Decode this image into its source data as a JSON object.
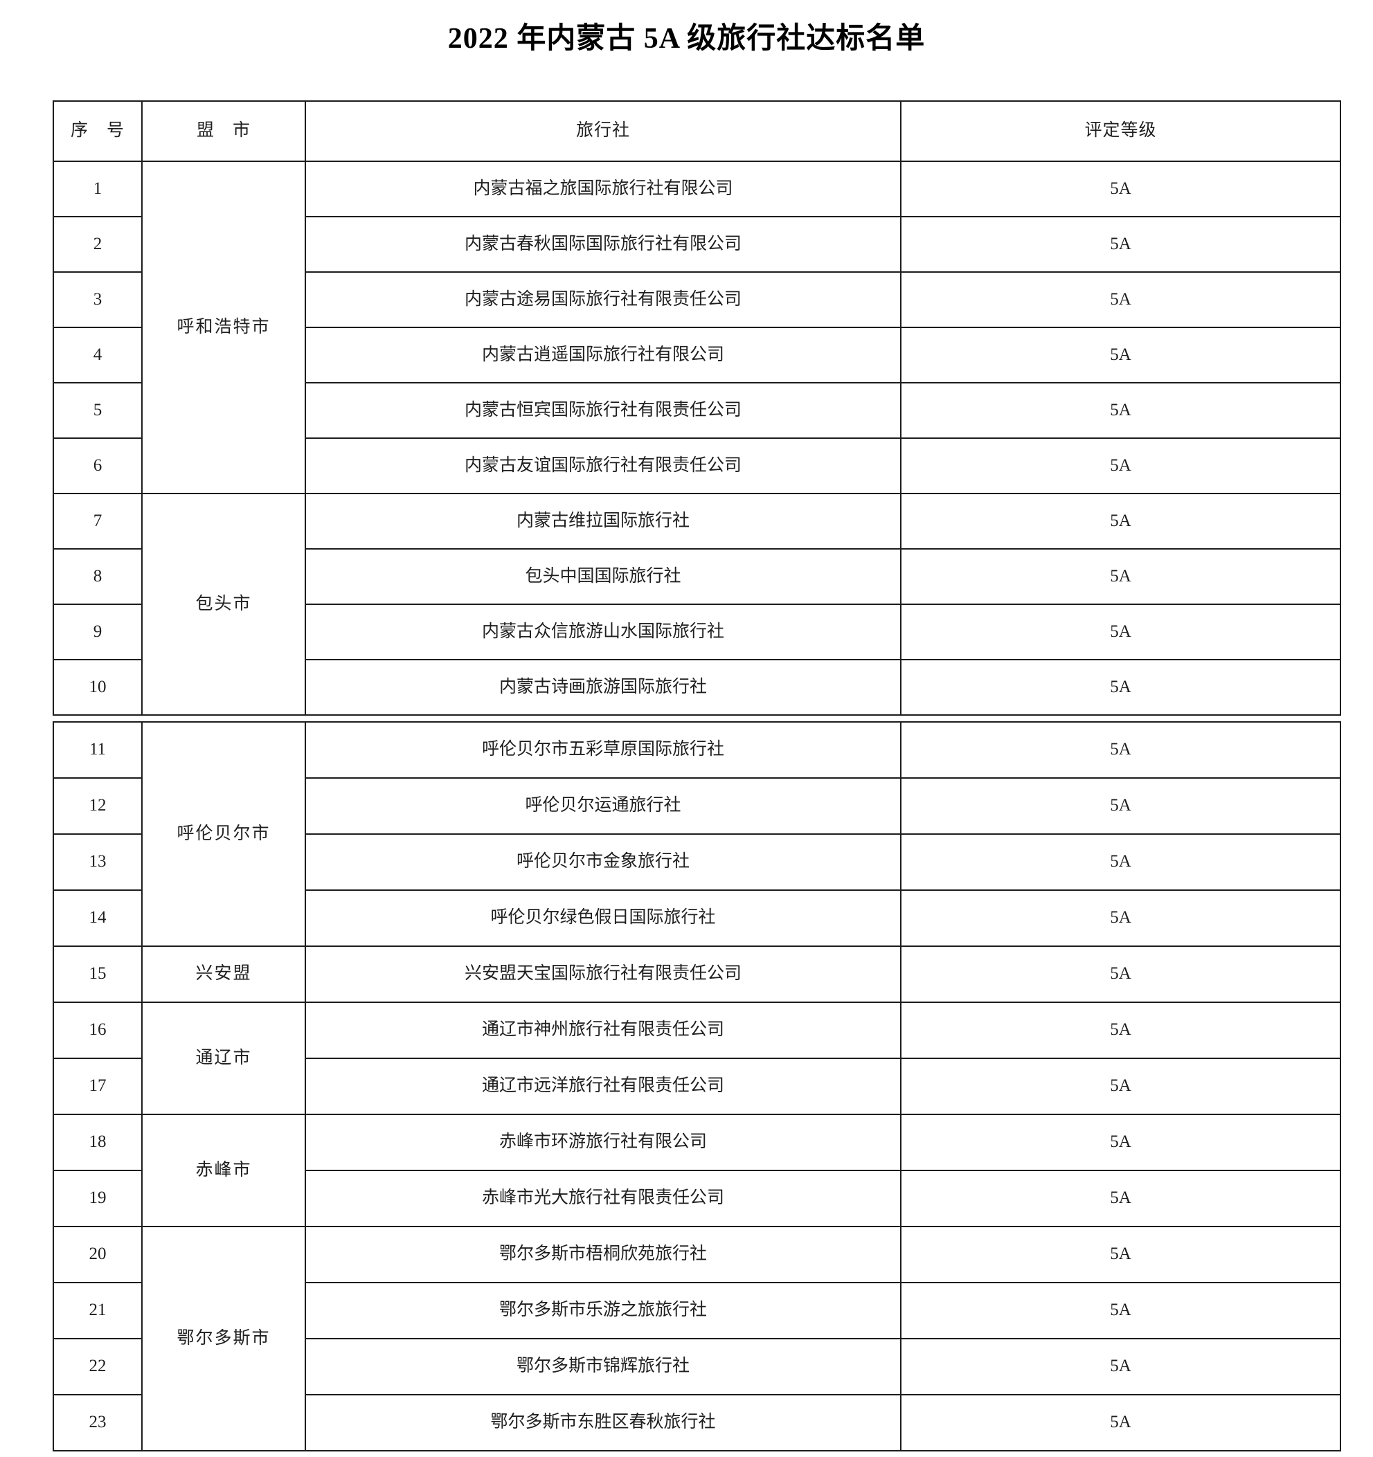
{
  "title": "2022 年内蒙古 5A 级旅行社达标名单",
  "table": {
    "headers": {
      "no": "序　号",
      "city": "盟　市",
      "agency": "旅行社",
      "grade": "评定等级"
    },
    "table1_row_count": 10,
    "rows": [
      {
        "no": "1",
        "city": "呼和浩特市",
        "city_span": 6,
        "agency": "内蒙古福之旅国际旅行社有限公司",
        "grade": "5A"
      },
      {
        "no": "2",
        "agency": "内蒙古春秋国际国际旅行社有限公司",
        "grade": "5A"
      },
      {
        "no": "3",
        "agency": "内蒙古途易国际旅行社有限责任公司",
        "grade": "5A"
      },
      {
        "no": "4",
        "agency": "内蒙古逍遥国际旅行社有限公司",
        "grade": "5A"
      },
      {
        "no": "5",
        "agency": "内蒙古恒宾国际旅行社有限责任公司",
        "grade": "5A"
      },
      {
        "no": "6",
        "agency": "内蒙古友谊国际旅行社有限责任公司",
        "grade": "5A"
      },
      {
        "no": "7",
        "city": "包头市",
        "city_span": 4,
        "agency": "内蒙古维拉国际旅行社",
        "grade": "5A"
      },
      {
        "no": "8",
        "agency": "包头中国国际旅行社",
        "grade": "5A"
      },
      {
        "no": "9",
        "agency": "内蒙古众信旅游山水国际旅行社",
        "grade": "5A"
      },
      {
        "no": "10",
        "agency": "内蒙古诗画旅游国际旅行社",
        "grade": "5A"
      },
      {
        "no": "11",
        "city": "呼伦贝尔市",
        "city_span": 4,
        "agency": "呼伦贝尔市五彩草原国际旅行社",
        "grade": "5A"
      },
      {
        "no": "12",
        "agency": "呼伦贝尔运通旅行社",
        "grade": "5A"
      },
      {
        "no": "13",
        "agency": "呼伦贝尔市金象旅行社",
        "grade": "5A"
      },
      {
        "no": "14",
        "agency": "呼伦贝尔绿色假日国际旅行社",
        "grade": "5A"
      },
      {
        "no": "15",
        "city": "兴安盟",
        "city_span": 1,
        "agency": "兴安盟天宝国际旅行社有限责任公司",
        "grade": "5A"
      },
      {
        "no": "16",
        "city": "通辽市",
        "city_span": 2,
        "agency": "通辽市神州旅行社有限责任公司",
        "grade": "5A"
      },
      {
        "no": "17",
        "agency": "通辽市远洋旅行社有限责任公司",
        "grade": "5A"
      },
      {
        "no": "18",
        "city": "赤峰市",
        "city_span": 2,
        "agency": "赤峰市环游旅行社有限公司",
        "grade": "5A"
      },
      {
        "no": "19",
        "agency": "赤峰市光大旅行社有限责任公司",
        "grade": "5A"
      },
      {
        "no": "20",
        "city": "鄂尔多斯市",
        "city_span": 4,
        "agency": "鄂尔多斯市梧桐欣苑旅行社",
        "grade": "5A"
      },
      {
        "no": "21",
        "agency": "鄂尔多斯市乐游之旅旅行社",
        "grade": "5A"
      },
      {
        "no": "22",
        "agency": "鄂尔多斯市锦辉旅行社",
        "grade": "5A"
      },
      {
        "no": "23",
        "agency": "鄂尔多斯市东胜区春秋旅行社",
        "grade": "5A"
      }
    ]
  }
}
